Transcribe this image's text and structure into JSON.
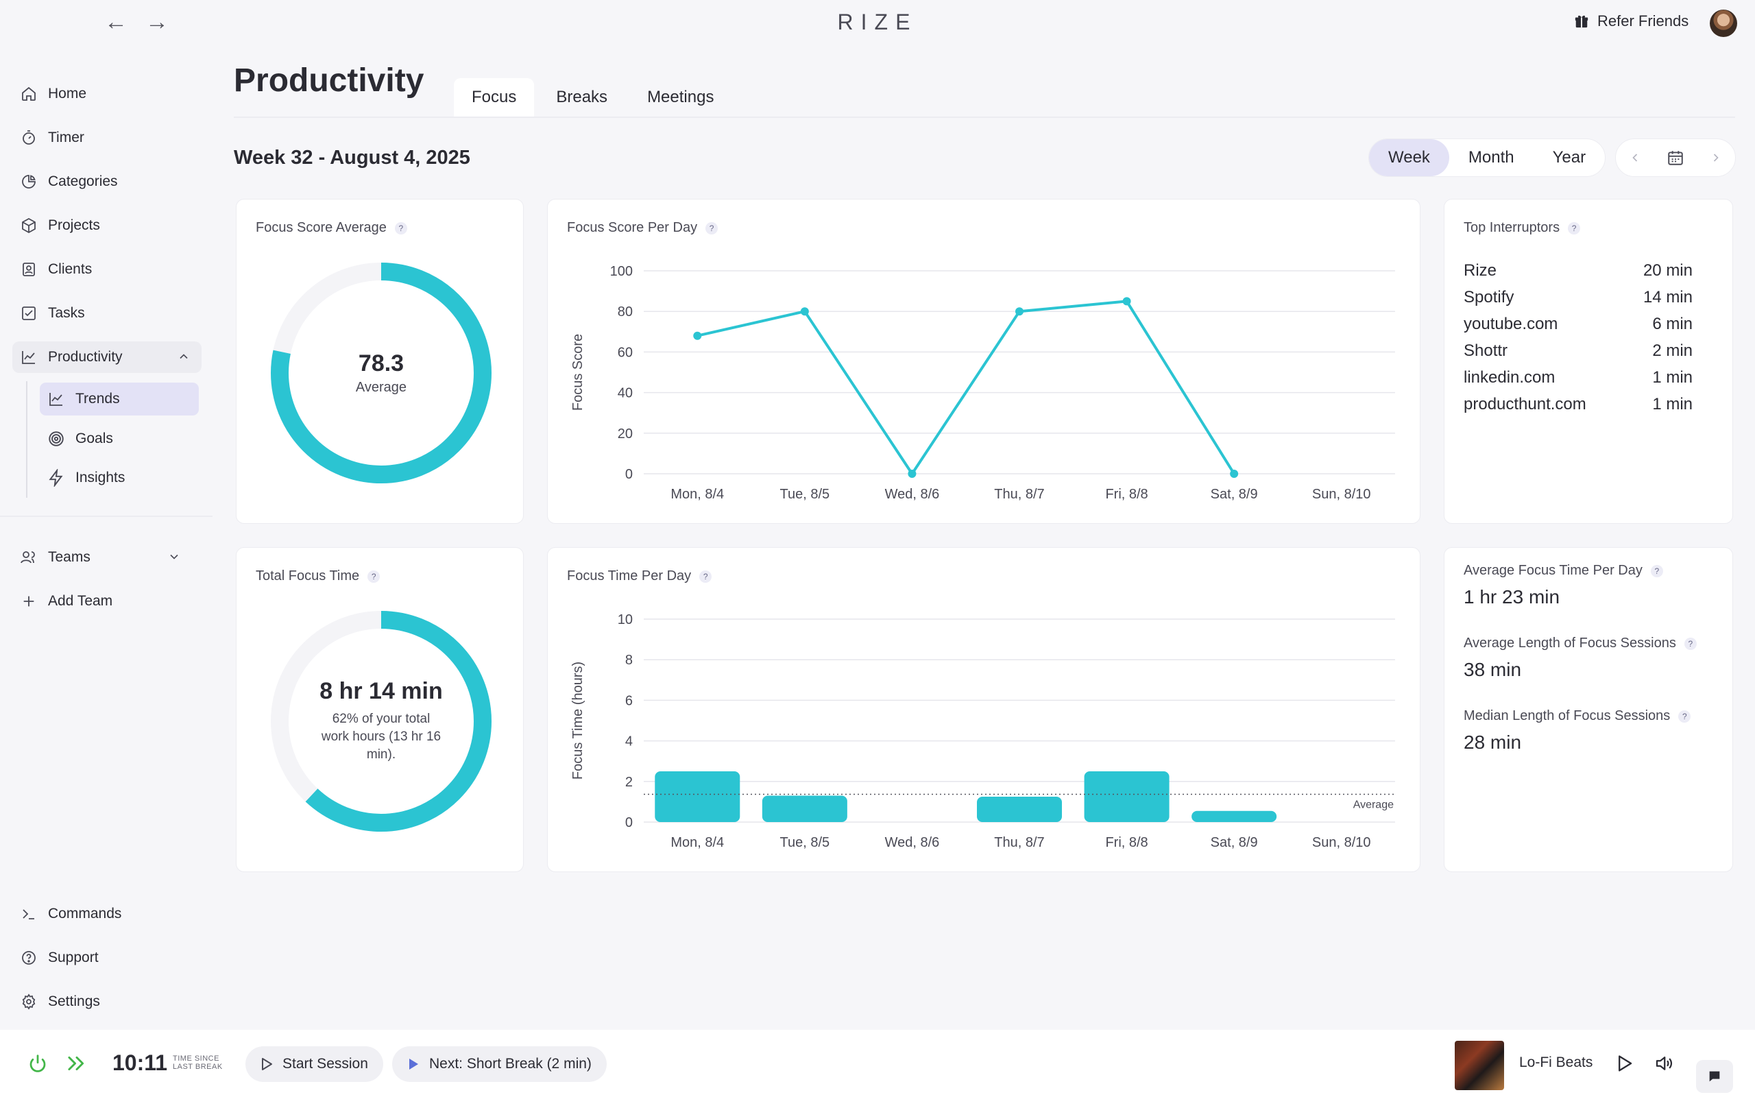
{
  "brand": "RIZE",
  "header": {
    "refer_label": "Refer Friends"
  },
  "sidebar": {
    "items": [
      {
        "label": "Home",
        "icon": "home-icon"
      },
      {
        "label": "Timer",
        "icon": "timer-icon"
      },
      {
        "label": "Categories",
        "icon": "pie-chart-icon"
      },
      {
        "label": "Projects",
        "icon": "cube-icon"
      },
      {
        "label": "Clients",
        "icon": "contact-icon"
      },
      {
        "label": "Tasks",
        "icon": "checkbox-icon"
      },
      {
        "label": "Productivity",
        "icon": "trend-line-icon"
      }
    ],
    "sub_items": [
      {
        "label": "Trends",
        "icon": "trend-line-icon"
      },
      {
        "label": "Goals",
        "icon": "target-icon"
      },
      {
        "label": "Insights",
        "icon": "lightning-icon"
      }
    ],
    "teams_label": "Teams",
    "add_team_label": "Add Team",
    "bottom_items": [
      {
        "label": "Commands",
        "icon": "terminal-icon"
      },
      {
        "label": "Support",
        "icon": "help-icon"
      },
      {
        "label": "Settings",
        "icon": "gear-icon"
      }
    ]
  },
  "main": {
    "title": "Productivity",
    "tabs": [
      {
        "label": "Focus"
      },
      {
        "label": "Breaks"
      },
      {
        "label": "Meetings"
      }
    ],
    "week_label": "Week 32 - August 4, 2025",
    "range": [
      {
        "label": "Week"
      },
      {
        "label": "Month"
      },
      {
        "label": "Year"
      }
    ]
  },
  "cards": {
    "focus_avg": {
      "title": "Focus Score Average",
      "value": "78.3",
      "sub": "Average",
      "ring_fraction": 0.783
    },
    "focus_per_day": {
      "title": "Focus Score Per Day"
    },
    "interruptors": {
      "title": "Top Interruptors",
      "rows": [
        {
          "name": "Rize",
          "time": "20 min"
        },
        {
          "name": "Spotify",
          "time": "14 min"
        },
        {
          "name": "youtube.com",
          "time": "6 min"
        },
        {
          "name": "Shottr",
          "time": "2 min"
        },
        {
          "name": "linkedin.com",
          "time": "1 min"
        },
        {
          "name": "producthunt.com",
          "time": "1 min"
        }
      ]
    },
    "total_focus": {
      "title": "Total Focus Time",
      "value": "8 hr 14 min",
      "sub": "62% of your total work hours (13 hr 16 min).",
      "ring_fraction": 0.62
    },
    "focus_time_per_day": {
      "title": "Focus Time Per Day",
      "average_label": "Average"
    },
    "stats": [
      {
        "label": "Average Focus Time Per Day",
        "value": "1 hr 23 min"
      },
      {
        "label": "Average Length of Focus Sessions",
        "value": "38 min"
      },
      {
        "label": "Median Length of Focus Sessions",
        "value": "28 min"
      }
    ]
  },
  "chart_data": [
    {
      "type": "line",
      "title": "Focus Score Per Day",
      "ylabel": "Focus Score",
      "xlabel": "",
      "categories": [
        "Mon, 8/4",
        "Tue, 8/5",
        "Wed, 8/6",
        "Thu, 8/7",
        "Fri, 8/8",
        "Sat, 8/9",
        "Sun, 8/10"
      ],
      "values": [
        68,
        80,
        0,
        80,
        85,
        0,
        null
      ],
      "ylim": [
        0,
        100
      ],
      "yticks": [
        0,
        20,
        40,
        60,
        80,
        100
      ],
      "grid": true,
      "color": "#2bc4d2"
    },
    {
      "type": "bar",
      "title": "Focus Time Per Day",
      "ylabel": "Focus Time (hours)",
      "xlabel": "",
      "categories": [
        "Mon, 8/4",
        "Tue, 8/5",
        "Wed, 8/6",
        "Thu, 8/7",
        "Fri, 8/8",
        "Sat, 8/9",
        "Sun, 8/10"
      ],
      "values": [
        2.5,
        1.3,
        0,
        1.25,
        2.5,
        0.55,
        0
      ],
      "average": 1.37,
      "ylim": [
        0,
        10
      ],
      "yticks": [
        0,
        2,
        4,
        6,
        8,
        10
      ],
      "grid": true,
      "color": "#2bc4d2"
    }
  ],
  "bottombar": {
    "time": "10:11",
    "since_line1": "TIME SINCE",
    "since_line2": "LAST BREAK",
    "start_label": "Start Session",
    "next_label": "Next: Short Break (2 min)",
    "track": "Lo-Fi Beats"
  },
  "colors": {
    "accent": "#2bc4d2",
    "active_bg": "#e3e2f6",
    "power": "#43b649"
  }
}
